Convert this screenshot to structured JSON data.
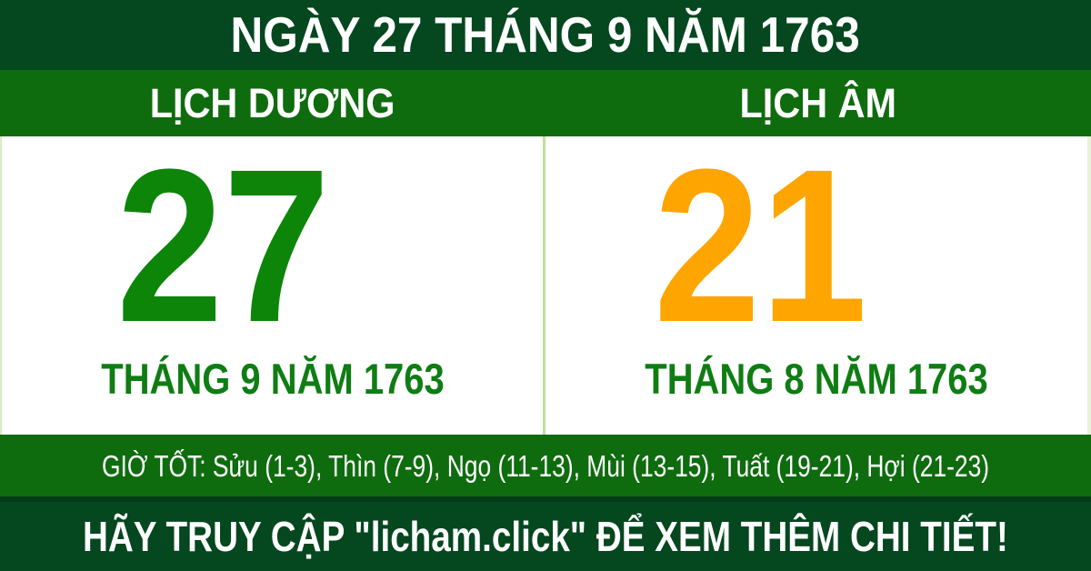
{
  "header": {
    "title": "NGÀY 27 THÁNG 9 NĂM 1763"
  },
  "solar": {
    "header": "LỊCH DƯƠNG",
    "day": "27",
    "month_year": "THÁNG 9 NĂM 1763"
  },
  "lunar": {
    "header": "LỊCH ÂM",
    "day": "21",
    "month_year": "THÁNG 8 NĂM 1763"
  },
  "good_hours": {
    "text": "GIỜ TỐT: Sửu (1-3), Thìn (7-9), Ngọ (11-13), Mùi (13-15), Tuất (19-21), Hợi (21-23)"
  },
  "footer": {
    "cta": "HÃY TRUY CẬP \"licham.click\" ĐỂ XEM THÊM CHI TIẾT!"
  },
  "colors": {
    "dark_green_bar": "#05471f",
    "bright_green_bar": "#0e6c0e",
    "solar_day_green": "#0c8508",
    "lunar_day_orange": "#ffa502",
    "month_label_green": "#0f7d14",
    "divider_light_green": "#bfdf9b",
    "text_white": "#ffffff"
  }
}
